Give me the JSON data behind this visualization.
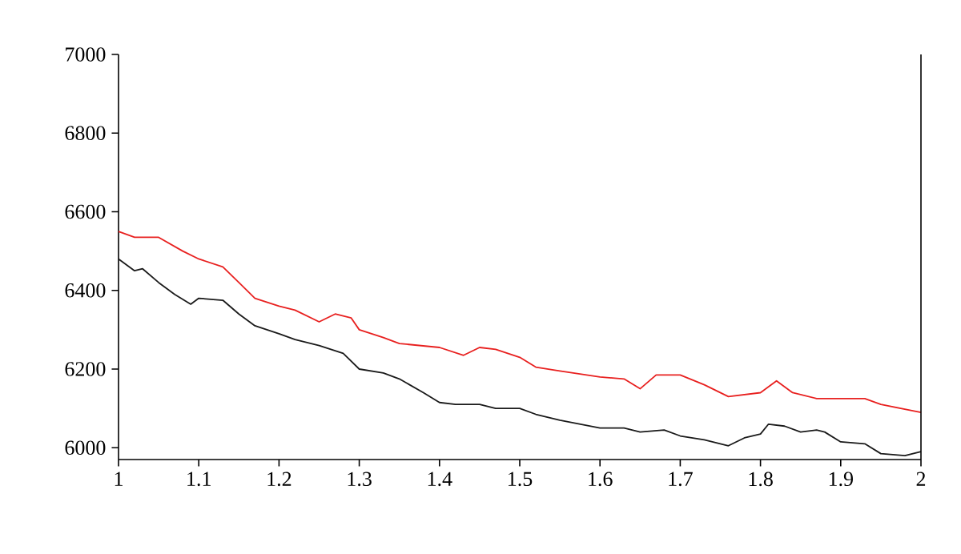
{
  "chart_data": {
    "type": "line",
    "xlim": [
      1,
      2
    ],
    "ylim": [
      5970,
      7000
    ],
    "xticks": [
      1,
      1.1,
      1.2,
      1.3,
      1.4,
      1.5,
      1.6,
      1.7,
      1.8,
      1.9,
      2
    ],
    "yticks": [
      6000,
      6200,
      6400,
      6600,
      6800,
      7000
    ],
    "grid": false,
    "marker": "none",
    "line_style": "solid",
    "series": [
      {
        "color": "#e8201f",
        "x": [
          1.0,
          1.02,
          1.05,
          1.08,
          1.1,
          1.13,
          1.15,
          1.17,
          1.2,
          1.22,
          1.25,
          1.27,
          1.29,
          1.3,
          1.33,
          1.35,
          1.4,
          1.43,
          1.45,
          1.47,
          1.5,
          1.52,
          1.55,
          1.6,
          1.63,
          1.65,
          1.67,
          1.7,
          1.73,
          1.76,
          1.8,
          1.82,
          1.84,
          1.87,
          1.9,
          1.93,
          1.95,
          2.0
        ],
        "values": [
          6550,
          6535,
          6535,
          6500,
          6480,
          6460,
          6420,
          6380,
          6360,
          6350,
          6320,
          6340,
          6330,
          6300,
          6280,
          6265,
          6255,
          6235,
          6255,
          6250,
          6230,
          6205,
          6195,
          6180,
          6175,
          6150,
          6185,
          6185,
          6160,
          6130,
          6140,
          6170,
          6140,
          6125,
          6125,
          6125,
          6110,
          6090
        ]
      },
      {
        "color": "#1a1a1a",
        "x": [
          1.0,
          1.02,
          1.03,
          1.05,
          1.07,
          1.09,
          1.1,
          1.13,
          1.15,
          1.17,
          1.2,
          1.22,
          1.25,
          1.28,
          1.3,
          1.33,
          1.35,
          1.38,
          1.4,
          1.42,
          1.45,
          1.47,
          1.5,
          1.52,
          1.55,
          1.6,
          1.63,
          1.65,
          1.68,
          1.7,
          1.73,
          1.76,
          1.78,
          1.8,
          1.81,
          1.83,
          1.85,
          1.87,
          1.88,
          1.9,
          1.93,
          1.95,
          1.98,
          2.0
        ],
        "values": [
          6480,
          6450,
          6455,
          6420,
          6390,
          6365,
          6380,
          6375,
          6340,
          6310,
          6290,
          6275,
          6260,
          6240,
          6200,
          6190,
          6175,
          6140,
          6115,
          6110,
          6110,
          6100,
          6100,
          6085,
          6070,
          6050,
          6050,
          6040,
          6045,
          6030,
          6020,
          6005,
          6025,
          6035,
          6060,
          6055,
          6040,
          6045,
          6040,
          6015,
          6010,
          5985,
          5980,
          5990
        ]
      }
    ]
  }
}
